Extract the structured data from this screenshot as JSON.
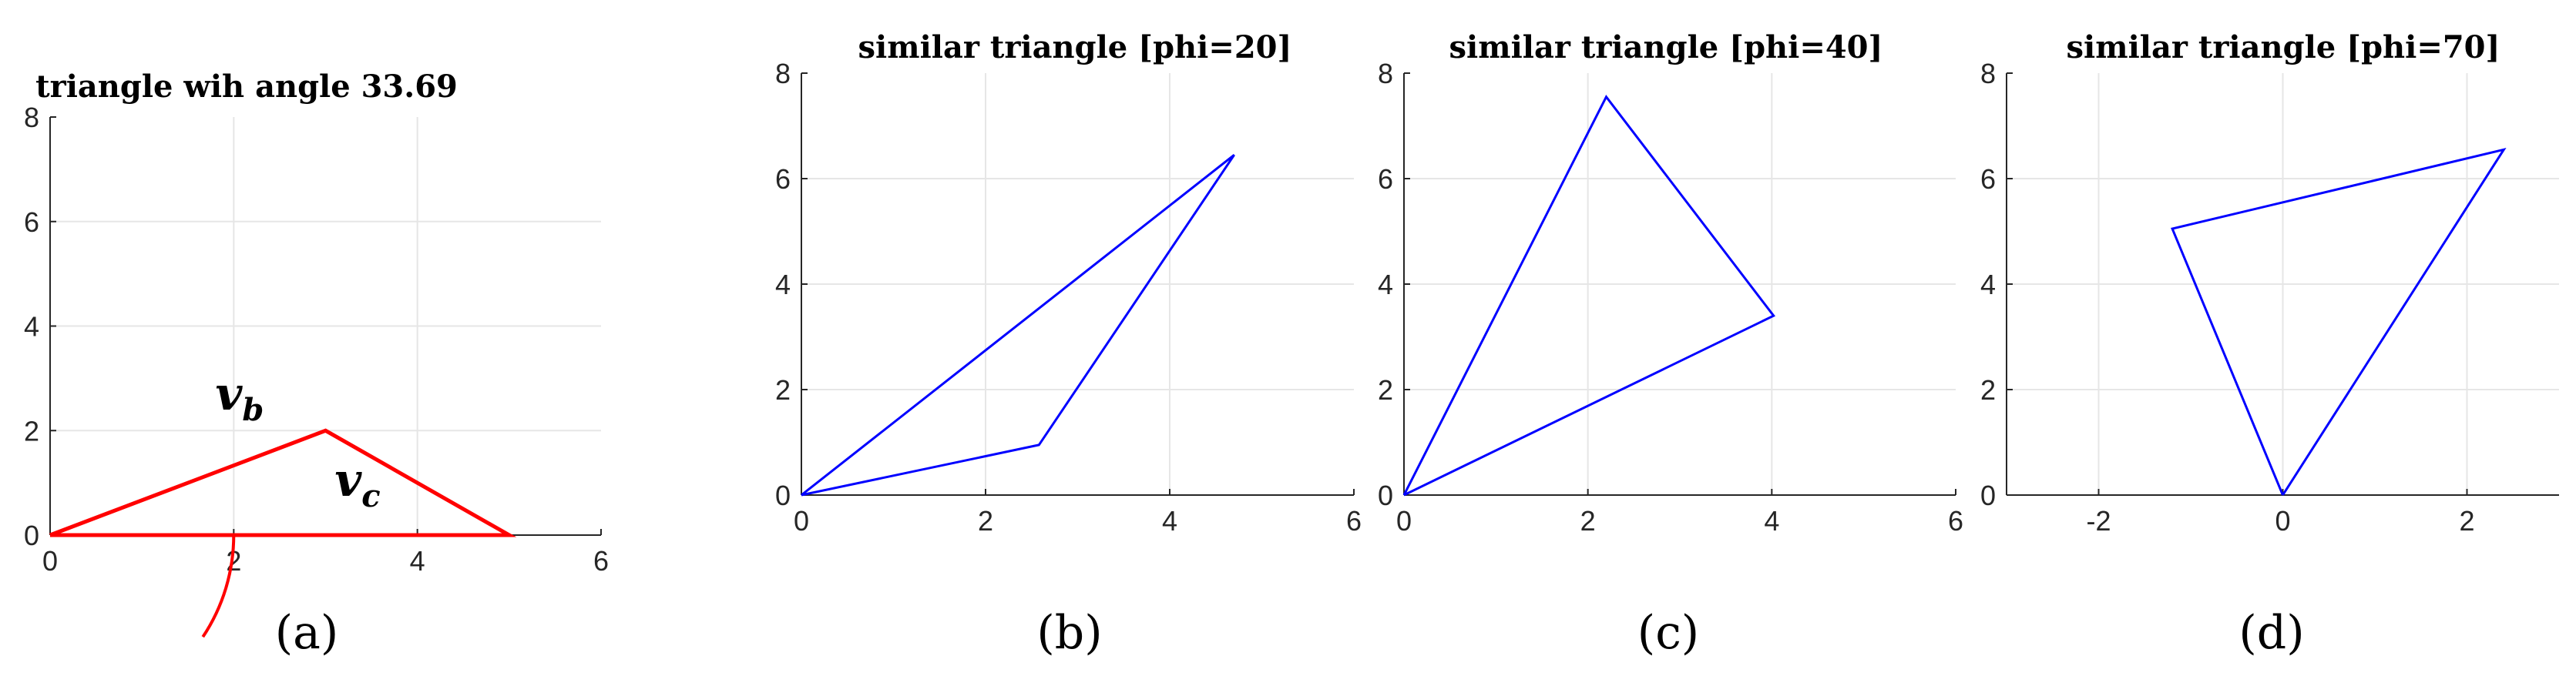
{
  "chart_data": [
    {
      "type": "line",
      "title": "triangle wih angle 33.69",
      "panel_label": "(a)",
      "xlim": [
        0,
        6
      ],
      "ylim": [
        0,
        8
      ],
      "xticks": [
        0,
        2,
        4,
        6
      ],
      "yticks": [
        0,
        2,
        4,
        6,
        8
      ],
      "grid": true,
      "color": "#ff0000",
      "series": [
        {
          "x": [
            0,
            3,
            5,
            0
          ],
          "y": [
            0,
            2,
            0,
            0
          ]
        }
      ],
      "annotations": [
        {
          "text": "v",
          "sub": "b",
          "x": 1.8,
          "y": 2.4
        },
        {
          "text": "v",
          "sub": "c",
          "x": 3.1,
          "y": 0.75
        }
      ],
      "angle_arc": {
        "radius": 2,
        "start_deg": 0,
        "end_deg": -33.69
      }
    },
    {
      "type": "line",
      "title": "similar triangle [phi=20]",
      "panel_label": "(b)",
      "xlim": [
        0,
        6
      ],
      "ylim": [
        0,
        8
      ],
      "xticks": [
        0,
        2,
        4,
        6
      ],
      "yticks": [
        0,
        2,
        4,
        6,
        8
      ],
      "grid": true,
      "color": "#0000ff",
      "series": [
        {
          "x": [
            0,
            2.58,
            4.7,
            0
          ],
          "y": [
            0,
            0.95,
            6.45,
            0
          ]
        }
      ]
    },
    {
      "type": "line",
      "title": "similar triangle [phi=40]",
      "panel_label": "(c)",
      "xlim": [
        0,
        6
      ],
      "ylim": [
        0,
        8
      ],
      "xticks": [
        0,
        2,
        4,
        6
      ],
      "yticks": [
        0,
        2,
        4,
        6,
        8
      ],
      "grid": true,
      "color": "#0000ff",
      "series": [
        {
          "x": [
            0,
            2.2,
            4.02,
            0
          ],
          "y": [
            0,
            7.55,
            3.4,
            0
          ]
        }
      ]
    },
    {
      "type": "line",
      "title": "similar triangle [phi=70]",
      "panel_label": "(d)",
      "xlim": [
        -3,
        3
      ],
      "ylim": [
        0,
        8
      ],
      "xticks": [
        -2,
        0,
        2
      ],
      "yticks": [
        0,
        2,
        4,
        6,
        8
      ],
      "grid": true,
      "color": "#0000ff",
      "series": [
        {
          "x": [
            0,
            -1.2,
            2.4,
            0
          ],
          "y": [
            0,
            5.05,
            6.55,
            0
          ]
        }
      ]
    }
  ]
}
